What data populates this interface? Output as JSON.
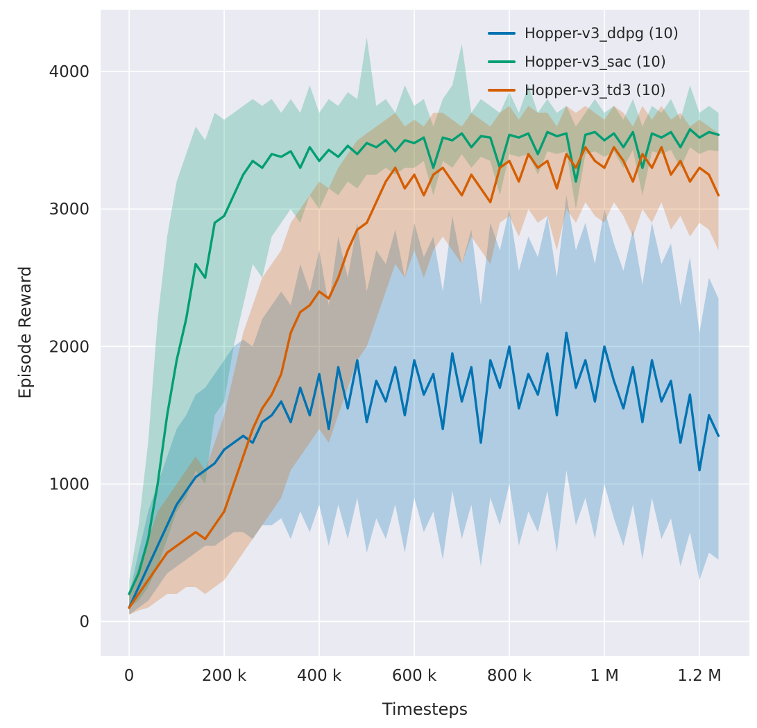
{
  "figure": {
    "page_background": "#ffffff",
    "plot_background": "#eaeaf2",
    "grid_color": "#ffffff",
    "text_color": "#262626"
  },
  "chart_data": {
    "type": "line",
    "title": "",
    "xlabel": "Timesteps",
    "ylabel": "Episode Reward",
    "grid": true,
    "legend_position": "upper right",
    "band_opacity": 0.25,
    "xlim": [
      -60000,
      1305000
    ],
    "ylim": [
      -250,
      4450
    ],
    "x_start": 0,
    "x_step": 20000,
    "x_ticks": [
      {
        "value": 0,
        "label": "0"
      },
      {
        "value": 200000,
        "label": "200 k"
      },
      {
        "value": 400000,
        "label": "400 k"
      },
      {
        "value": 600000,
        "label": "600 k"
      },
      {
        "value": 800000,
        "label": "800 k"
      },
      {
        "value": 1000000,
        "label": "1 M"
      },
      {
        "value": 1200000,
        "label": "1.2 M"
      }
    ],
    "y_ticks": [
      {
        "value": 0,
        "label": "0"
      },
      {
        "value": 1000,
        "label": "1000"
      },
      {
        "value": 2000,
        "label": "2000"
      },
      {
        "value": 3000,
        "label": "3000"
      },
      {
        "value": 4000,
        "label": "4000"
      }
    ],
    "series": [
      {
        "name": "Hopper-v3_ddpg (10)",
        "color": "#0173b2",
        "mean": [
          100,
          250,
          400,
          550,
          700,
          850,
          950,
          1050,
          1100,
          1150,
          1250,
          1300,
          1350,
          1300,
          1450,
          1500,
          1600,
          1450,
          1700,
          1500,
          1800,
          1400,
          1850,
          1550,
          1900,
          1450,
          1750,
          1600,
          1850,
          1500,
          1900,
          1650,
          1800,
          1400,
          1950,
          1600,
          1850,
          1300,
          1900,
          1700,
          2000,
          1550,
          1800,
          1650,
          1950,
          1500,
          2100,
          1700,
          1900,
          1600,
          2000,
          1750,
          1550,
          1850,
          1450,
          1900,
          1600,
          1750,
          1300,
          1650,
          1100,
          1500,
          1350
        ],
        "lo": [
          50,
          100,
          150,
          250,
          350,
          400,
          450,
          500,
          550,
          550,
          600,
          650,
          650,
          600,
          700,
          700,
          750,
          600,
          800,
          650,
          850,
          550,
          850,
          600,
          900,
          500,
          750,
          600,
          850,
          500,
          900,
          650,
          800,
          450,
          950,
          600,
          850,
          400,
          900,
          700,
          1000,
          550,
          800,
          650,
          950,
          500,
          1100,
          700,
          900,
          600,
          1000,
          750,
          550,
          850,
          450,
          900,
          600,
          750,
          400,
          650,
          300,
          500,
          450
        ],
        "hi": [
          200,
          500,
          800,
          1000,
          1200,
          1400,
          1500,
          1650,
          1700,
          1800,
          1900,
          2000,
          2050,
          2000,
          2200,
          2300,
          2400,
          2300,
          2600,
          2400,
          2700,
          2300,
          2800,
          2500,
          2900,
          2400,
          2700,
          2600,
          2850,
          2500,
          2900,
          2650,
          2800,
          2400,
          2950,
          2600,
          2850,
          2300,
          2900,
          2700,
          3000,
          2550,
          2800,
          2650,
          2950,
          2500,
          3100,
          2700,
          2900,
          2600,
          3000,
          2750,
          2550,
          2850,
          2450,
          2900,
          2600,
          2750,
          2300,
          2650,
          2100,
          2500,
          2350
        ]
      },
      {
        "name": "Hopper-v3_sac (10)",
        "color": "#029e73",
        "mean": [
          200,
          350,
          600,
          1000,
          1500,
          1900,
          2200,
          2600,
          2500,
          2900,
          2950,
          3100,
          3250,
          3350,
          3300,
          3400,
          3380,
          3420,
          3300,
          3450,
          3350,
          3430,
          3380,
          3460,
          3400,
          3480,
          3450,
          3500,
          3420,
          3500,
          3480,
          3520,
          3300,
          3520,
          3500,
          3550,
          3450,
          3530,
          3520,
          3300,
          3540,
          3520,
          3550,
          3400,
          3560,
          3530,
          3550,
          3200,
          3540,
          3560,
          3500,
          3550,
          3450,
          3560,
          3300,
          3550,
          3520,
          3560,
          3450,
          3580,
          3520,
          3560,
          3540
        ],
        "lo": [
          100,
          150,
          250,
          400,
          600,
          800,
          900,
          1100,
          1000,
          1500,
          1600,
          2000,
          2300,
          2600,
          2500,
          2800,
          2900,
          3000,
          2900,
          3100,
          3000,
          3150,
          3100,
          3200,
          3150,
          3250,
          3250,
          3300,
          3250,
          3300,
          3300,
          3350,
          3100,
          3350,
          3300,
          3400,
          3300,
          3380,
          3350,
          3100,
          3400,
          3380,
          3400,
          3250,
          3420,
          3400,
          3420,
          3000,
          3400,
          3420,
          3380,
          3420,
          3300,
          3430,
          3100,
          3420,
          3400,
          3430,
          3300,
          3450,
          3400,
          3430,
          3420
        ],
        "hi": [
          300,
          700,
          1300,
          2200,
          2800,
          3200,
          3400,
          3600,
          3500,
          3700,
          3650,
          3700,
          3750,
          3800,
          3750,
          3800,
          3700,
          3800,
          3700,
          3900,
          3700,
          3800,
          3750,
          3850,
          3800,
          4250,
          3750,
          3800,
          3700,
          3900,
          3750,
          3800,
          3600,
          3800,
          3900,
          4200,
          3700,
          3800,
          3750,
          3700,
          3850,
          3700,
          3900,
          3700,
          3800,
          3700,
          3750,
          3600,
          3700,
          3800,
          3700,
          3750,
          3650,
          3800,
          3600,
          3750,
          3700,
          3800,
          3650,
          3900,
          3700,
          3750,
          3700
        ]
      },
      {
        "name": "Hopper-v3_td3 (10)",
        "color": "#d55e00",
        "mean": [
          100,
          200,
          300,
          400,
          500,
          550,
          600,
          650,
          600,
          700,
          800,
          1000,
          1200,
          1400,
          1550,
          1650,
          1800,
          2100,
          2250,
          2300,
          2400,
          2350,
          2500,
          2700,
          2850,
          2900,
          3050,
          3200,
          3300,
          3150,
          3250,
          3100,
          3250,
          3300,
          3200,
          3100,
          3250,
          3150,
          3050,
          3300,
          3350,
          3200,
          3400,
          3300,
          3350,
          3150,
          3400,
          3300,
          3450,
          3350,
          3300,
          3450,
          3350,
          3200,
          3400,
          3300,
          3450,
          3250,
          3350,
          3200,
          3300,
          3250,
          3100
        ],
        "lo": [
          50,
          80,
          100,
          150,
          200,
          200,
          250,
          250,
          200,
          250,
          300,
          400,
          500,
          600,
          700,
          800,
          900,
          1100,
          1200,
          1300,
          1400,
          1300,
          1500,
          1700,
          1900,
          2000,
          2200,
          2400,
          2600,
          2500,
          2700,
          2500,
          2700,
          2800,
          2700,
          2600,
          2800,
          2700,
          2600,
          2900,
          2950,
          2800,
          3000,
          2900,
          2950,
          2700,
          3000,
          2900,
          3050,
          2950,
          2900,
          3050,
          2950,
          2800,
          3000,
          2900,
          3050,
          2850,
          2950,
          2800,
          2900,
          2850,
          2700
        ],
        "hi": [
          200,
          400,
          600,
          800,
          900,
          1000,
          1100,
          1200,
          1100,
          1300,
          1500,
          1800,
          2100,
          2300,
          2500,
          2600,
          2700,
          2900,
          3000,
          3100,
          3200,
          3150,
          3300,
          3400,
          3500,
          3550,
          3600,
          3650,
          3700,
          3600,
          3650,
          3600,
          3700,
          3700,
          3650,
          3600,
          3700,
          3650,
          3600,
          3700,
          3750,
          3650,
          3750,
          3700,
          3700,
          3600,
          3750,
          3700,
          3750,
          3700,
          3650,
          3750,
          3700,
          3600,
          3750,
          3650,
          3750,
          3650,
          3700,
          3600,
          3650,
          3600,
          3550
        ]
      }
    ]
  }
}
